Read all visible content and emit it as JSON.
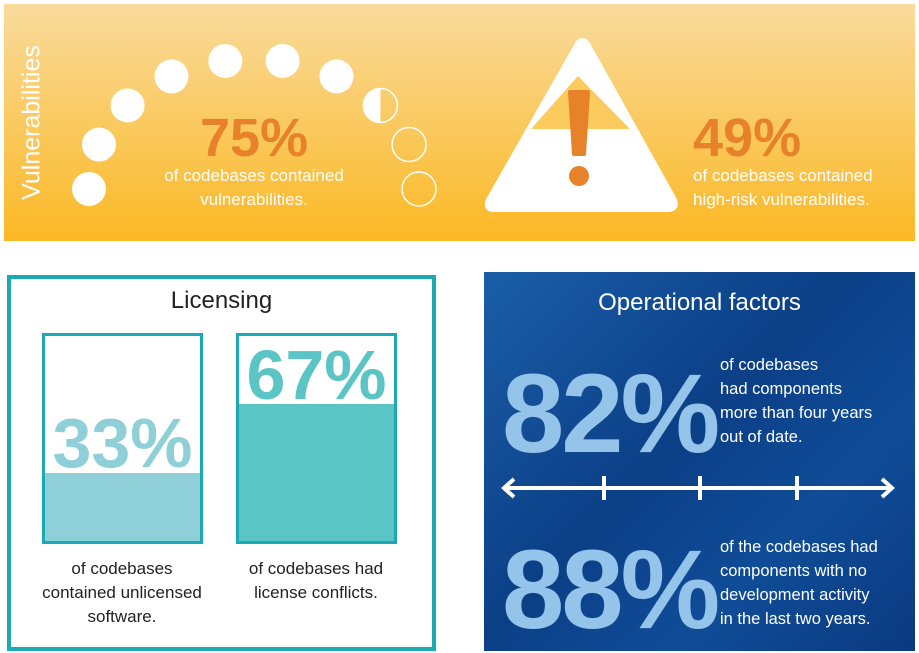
{
  "vulnerabilities": {
    "title": "Vulnerabilities",
    "stat1": {
      "value": "75%",
      "line1": "of codebases contained",
      "line2": "vulnerabilities.",
      "dots_filled": 7.5,
      "dots_total": 10
    },
    "stat2": {
      "value": "49%",
      "line1": "of codebases contained",
      "line2": "high-risk vulnerabilities."
    },
    "accent": "#e8822a"
  },
  "licensing": {
    "title": "Licensing",
    "bars": [
      {
        "value": "33%",
        "fill_percent": 33,
        "line1": "of codebases",
        "line2": "contained unlicensed",
        "line3": "software.",
        "color": "#8fd0d8"
      },
      {
        "value": "67%",
        "fill_percent": 67,
        "line1": "of codebases had",
        "line2": "license conflicts.",
        "color": "#5bc4c4"
      }
    ],
    "border_color": "#1aa9b5"
  },
  "operational": {
    "title": "Operational factors",
    "stat1": {
      "value": "82%",
      "lines": [
        "of codebases",
        "had components",
        "more than four years",
        "out of date."
      ]
    },
    "stat2": {
      "value": "88%",
      "lines": [
        "of the codebases had",
        "components with no",
        "development activity",
        "in the last two years."
      ]
    }
  }
}
